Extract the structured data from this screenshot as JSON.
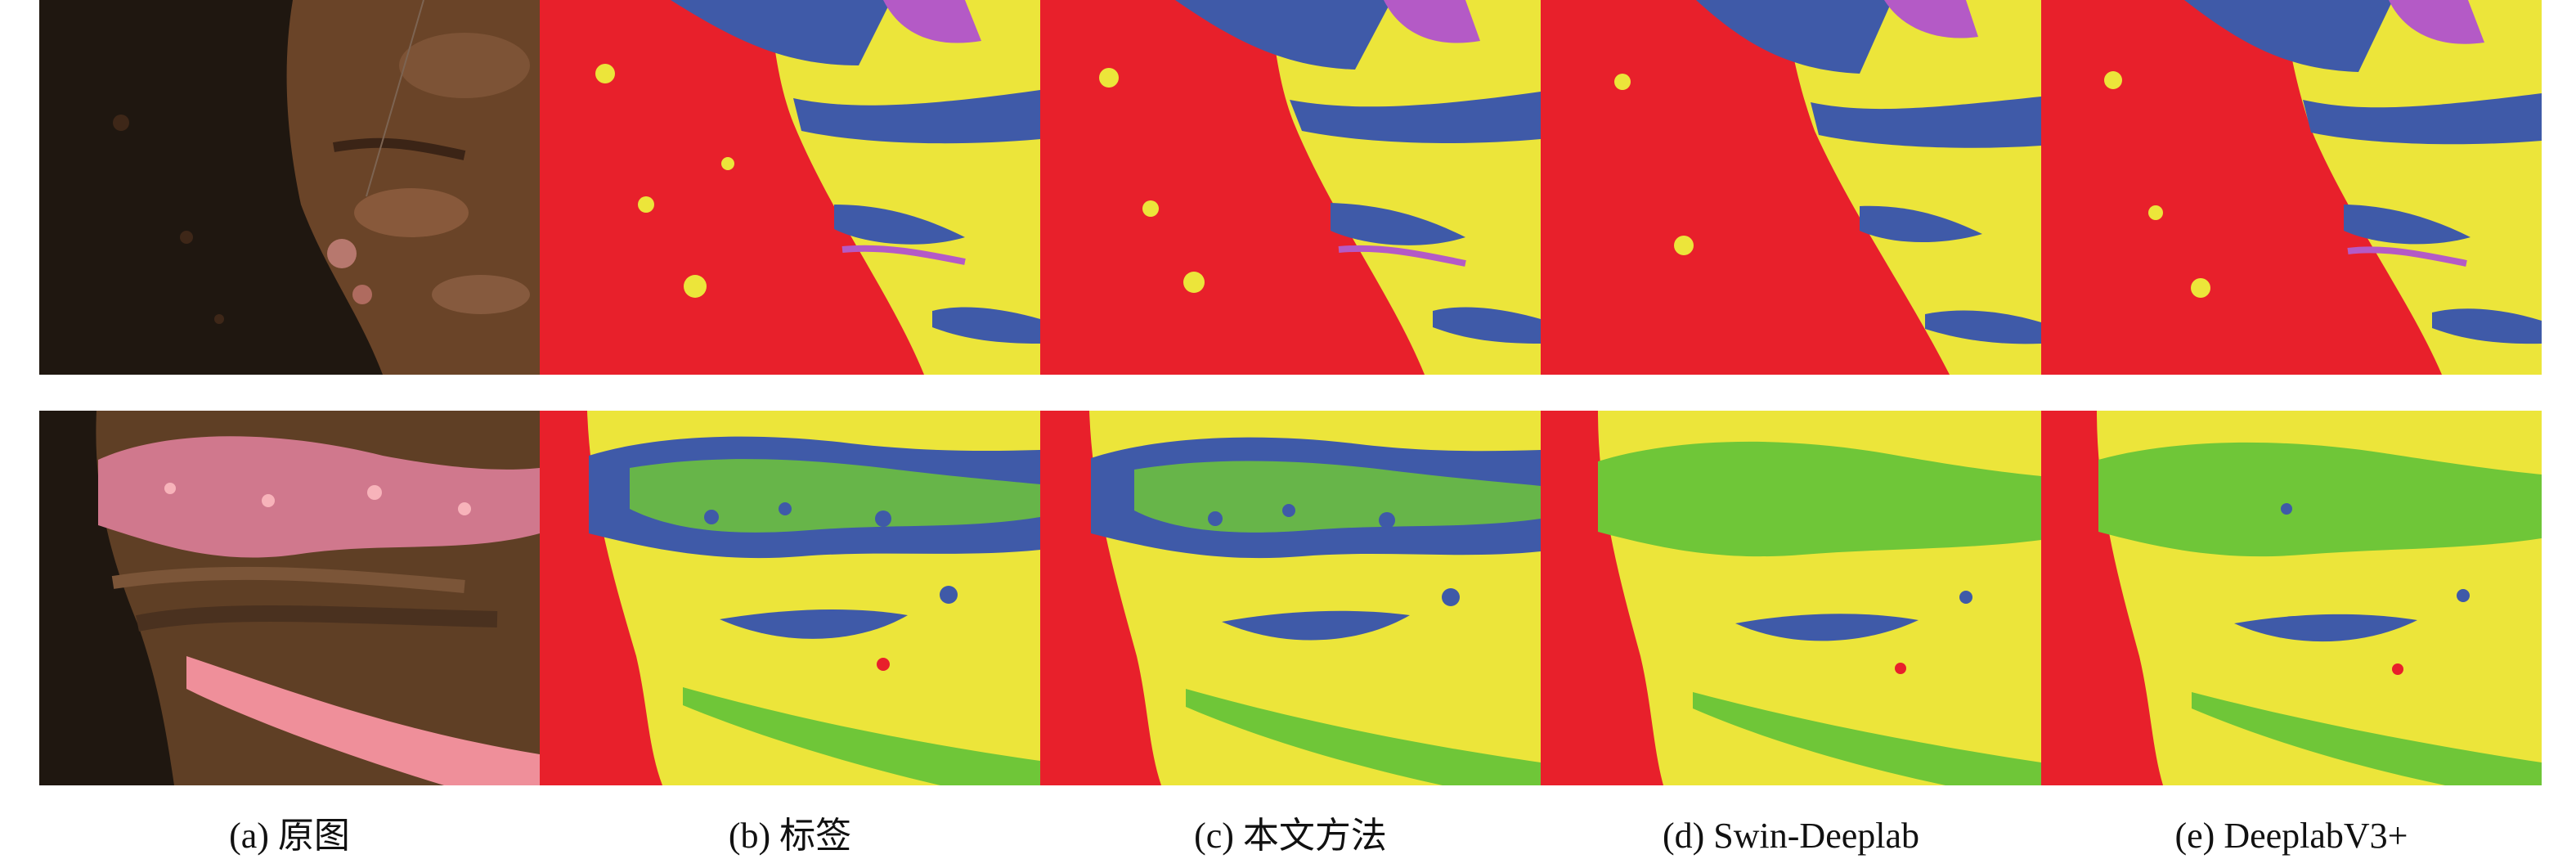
{
  "figure": {
    "captions": [
      "(a) 原图",
      "(b) 标签",
      "(c) 本文方法",
      "(d) Swin-Deeplab",
      "(e) DeeplabV3+"
    ]
  },
  "colors": {
    "red": "#e8202b",
    "yellow": "#ece53a",
    "blue": "#3f5aa8",
    "magenta": "#b45ac6",
    "green": "#6fc638",
    "photo_dark": "#1f1710",
    "photo_brown": "#6a4428",
    "photo_pink": "#ef8f9a"
  }
}
